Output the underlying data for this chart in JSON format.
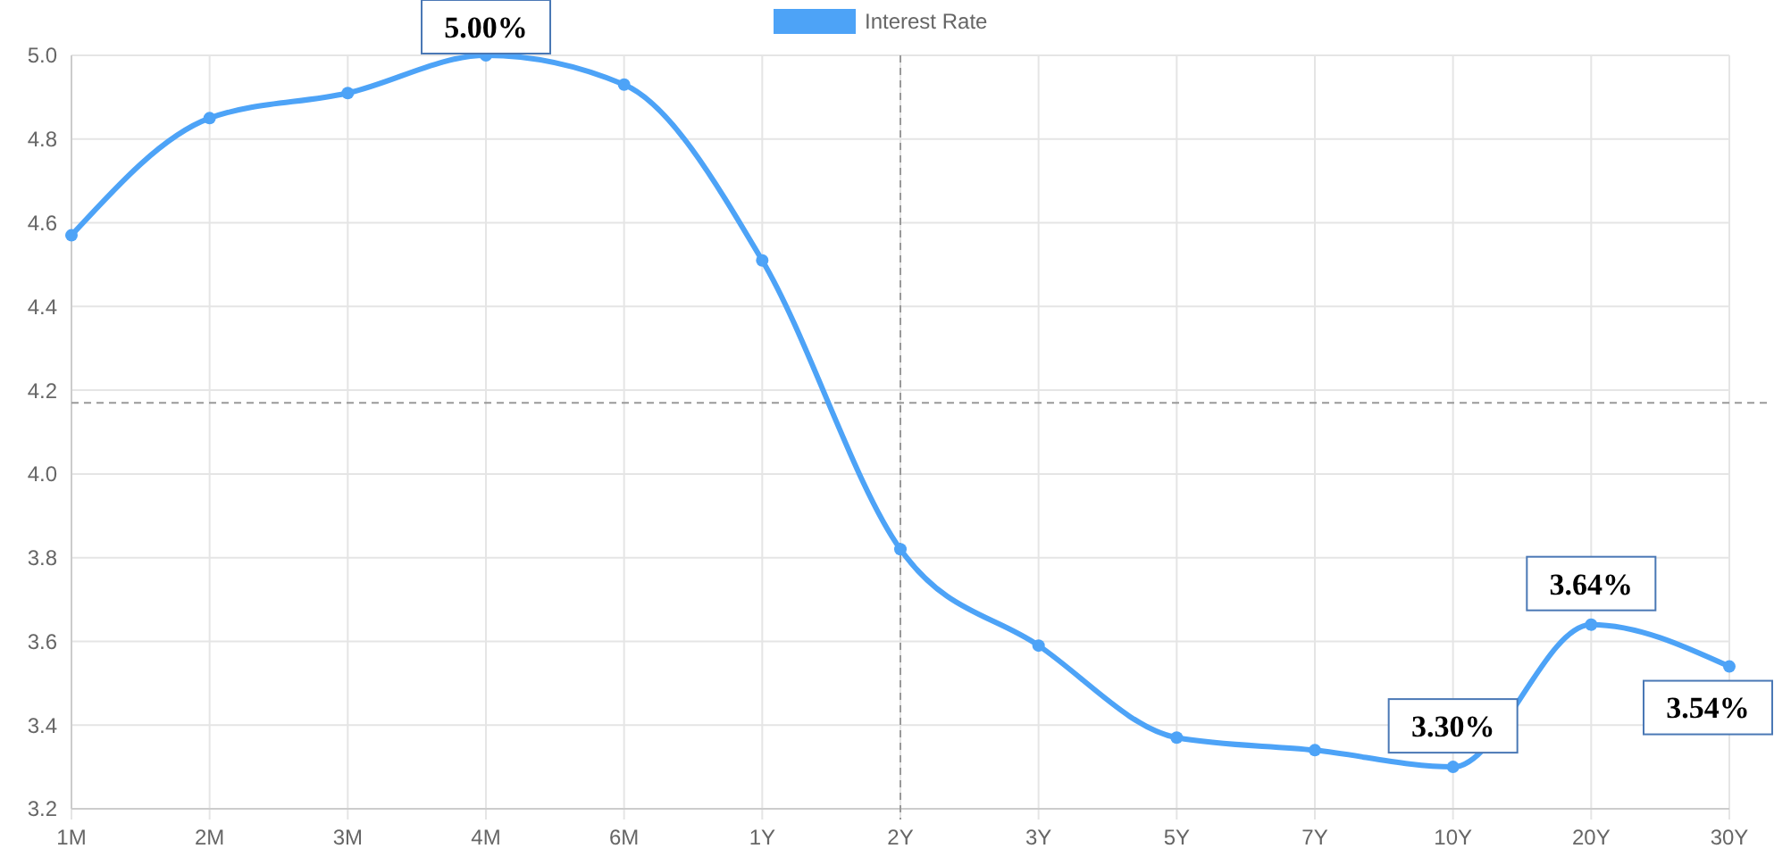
{
  "chart_data": {
    "type": "line",
    "categories": [
      "1M",
      "2M",
      "3M",
      "4M",
      "6M",
      "1Y",
      "2Y",
      "3Y",
      "5Y",
      "7Y",
      "10Y",
      "20Y",
      "30Y"
    ],
    "series": [
      {
        "name": "Interest Rate",
        "color": "#4da3f7",
        "values": [
          4.57,
          4.85,
          4.91,
          5.0,
          4.93,
          4.51,
          3.82,
          3.59,
          3.37,
          3.34,
          3.3,
          3.64,
          3.54
        ]
      }
    ],
    "ylim": [
      3.2,
      5.0
    ],
    "yticks": [
      {
        "value": 3.2,
        "label": "3.2"
      },
      {
        "value": 3.4,
        "label": "3.4"
      },
      {
        "value": 3.6,
        "label": "3.6"
      },
      {
        "value": 3.8,
        "label": "3.8"
      },
      {
        "value": 4.0,
        "label": "4.0"
      },
      {
        "value": 4.2,
        "label": "4.2"
      },
      {
        "value": 4.4,
        "label": "4.4"
      },
      {
        "value": 4.6,
        "label": "4.6"
      },
      {
        "value": 4.8,
        "label": "4.8"
      },
      {
        "value": 5.0,
        "label": "5.0"
      }
    ],
    "grid": true,
    "legend": "top",
    "marker": "circle",
    "line_style": "solid",
    "ref_lines": [
      {
        "axis": "y",
        "value": 4.17,
        "line_style": "dashed",
        "color": "#999999"
      },
      {
        "axis": "x",
        "value": "2Y",
        "line_style": "dashed",
        "color": "#999999"
      }
    ],
    "annotations": [
      {
        "text": "5.00%",
        "x": "4M",
        "y": 5.0
      },
      {
        "text": "3.30%",
        "x": "10Y",
        "y": 3.3
      },
      {
        "text": "3.64%",
        "x": "20Y",
        "y": 3.64
      },
      {
        "text": "3.54%",
        "x": "30Y",
        "y": 3.54
      }
    ]
  }
}
